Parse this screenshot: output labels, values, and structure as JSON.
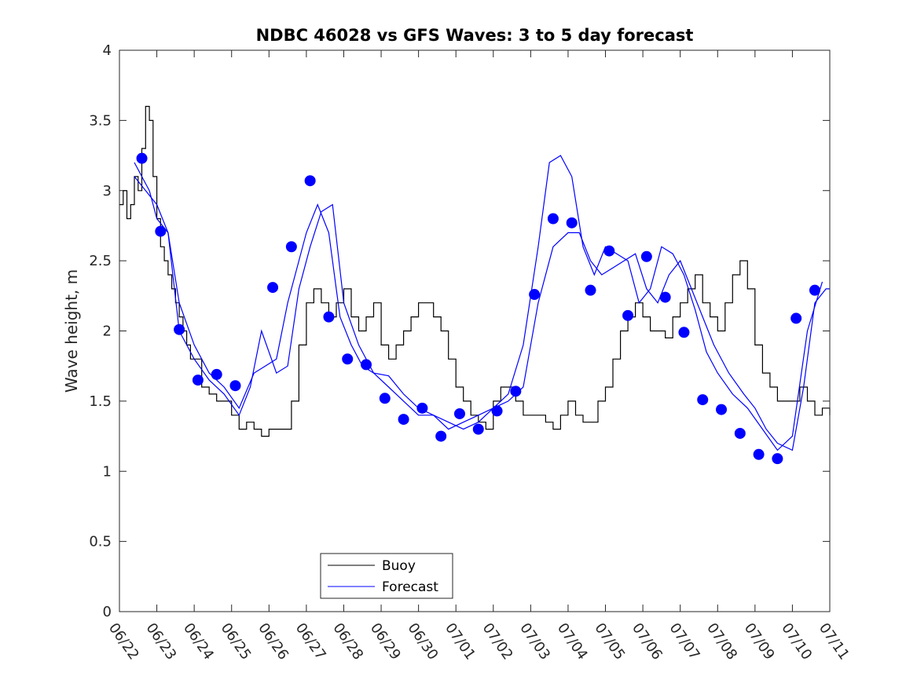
{
  "chart_data": {
    "type": "line",
    "title": "NDBC 46028 vs GFS Waves: 3 to 5 day forecast",
    "xlabel": "",
    "ylabel": "Wave height, m",
    "xlim": [
      "06/22",
      "07/11"
    ],
    "ylim": [
      0,
      4
    ],
    "x_ticks": [
      "06/22",
      "06/23",
      "06/24",
      "06/25",
      "06/26",
      "06/27",
      "06/28",
      "06/29",
      "06/30",
      "07/01",
      "07/02",
      "07/03",
      "07/04",
      "07/05",
      "07/06",
      "07/07",
      "07/08",
      "07/09",
      "07/10",
      "07/11"
    ],
    "y_ticks": [
      "0",
      "0.5",
      "1",
      "1.5",
      "2",
      "2.5",
      "3",
      "3.5",
      "4"
    ],
    "legend": {
      "position": "bottom-center",
      "entries": [
        "Buoy",
        "Forecast"
      ]
    },
    "colors": {
      "buoy": "#000000",
      "forecast": "#0000ff",
      "markers": "#0000ff"
    },
    "series": [
      {
        "name": "Buoy",
        "x_days": [
          0.0,
          0.1,
          0.2,
          0.3,
          0.4,
          0.5,
          0.6,
          0.7,
          0.8,
          0.9,
          1.0,
          1.1,
          1.2,
          1.3,
          1.4,
          1.5,
          1.6,
          1.7,
          1.8,
          1.9,
          2.0,
          2.2,
          2.4,
          2.6,
          2.8,
          3.0,
          3.2,
          3.4,
          3.6,
          3.8,
          4.0,
          4.2,
          4.4,
          4.6,
          4.8,
          5.0,
          5.2,
          5.4,
          5.6,
          5.8,
          6.0,
          6.2,
          6.4,
          6.6,
          6.8,
          7.0,
          7.2,
          7.4,
          7.6,
          7.8,
          8.0,
          8.2,
          8.4,
          8.6,
          8.8,
          9.0,
          9.2,
          9.4,
          9.6,
          9.8,
          10.0,
          10.2,
          10.4,
          10.6,
          10.8,
          11.0,
          11.2,
          11.4,
          11.6,
          11.8,
          12.0,
          12.2,
          12.4,
          12.6,
          12.8,
          13.0,
          13.2,
          13.4,
          13.6,
          13.8,
          14.0,
          14.2,
          14.4,
          14.6,
          14.8,
          15.0,
          15.2,
          15.4,
          15.6,
          15.8,
          16.0,
          16.2,
          16.4,
          16.6,
          16.8,
          17.0,
          17.2,
          17.4,
          17.6,
          17.8,
          18.0,
          18.2,
          18.4,
          18.6,
          18.8,
          19.0
        ],
        "values": [
          2.9,
          3.0,
          2.8,
          2.9,
          3.1,
          3.0,
          3.3,
          3.6,
          3.5,
          3.1,
          2.8,
          2.6,
          2.5,
          2.4,
          2.3,
          2.2,
          2.1,
          2.0,
          1.9,
          1.8,
          1.8,
          1.6,
          1.55,
          1.5,
          1.5,
          1.4,
          1.3,
          1.35,
          1.3,
          1.25,
          1.3,
          1.3,
          1.3,
          1.5,
          1.9,
          2.2,
          2.3,
          2.2,
          2.1,
          2.2,
          2.3,
          2.1,
          2.0,
          2.1,
          2.2,
          1.9,
          1.8,
          1.9,
          2.0,
          2.1,
          2.2,
          2.2,
          2.1,
          2.0,
          1.8,
          1.6,
          1.5,
          1.4,
          1.35,
          1.3,
          1.5,
          1.6,
          1.6,
          1.5,
          1.4,
          1.4,
          1.4,
          1.35,
          1.3,
          1.4,
          1.5,
          1.4,
          1.35,
          1.35,
          1.5,
          1.6,
          1.8,
          2.0,
          2.1,
          2.2,
          2.1,
          2.0,
          2.0,
          1.95,
          2.1,
          2.2,
          2.3,
          2.4,
          2.2,
          2.1,
          2.0,
          2.2,
          2.4,
          2.5,
          2.3,
          1.9,
          1.7,
          1.6,
          1.5,
          1.5,
          1.5,
          1.6,
          1.5,
          1.4,
          1.45,
          1.4
        ]
      },
      {
        "name": "Forecast",
        "x_days": [
          0.4,
          0.6,
          0.8,
          1.0,
          1.3,
          1.6,
          2.0,
          2.4,
          2.8,
          3.2,
          3.6,
          3.9,
          4.2,
          4.5,
          4.8,
          5.0,
          5.3,
          5.6,
          5.9,
          6.2,
          6.5,
          6.8,
          7.2,
          7.6,
          8.0,
          8.4,
          8.8,
          9.2,
          9.6,
          10.0,
          10.4,
          10.8,
          11.2,
          11.6,
          12.0,
          12.3,
          12.6,
          12.9,
          13.2,
          13.5,
          13.8,
          14.1,
          14.4,
          14.7,
          15.0,
          15.3,
          15.6,
          15.9,
          16.3,
          16.7,
          17.0,
          17.3,
          17.6,
          18.0,
          18.3,
          18.6,
          18.9,
          19.0
        ],
        "values": [
          3.2,
          3.1,
          3.0,
          2.8,
          2.7,
          2.2,
          1.9,
          1.7,
          1.6,
          1.45,
          1.7,
          1.75,
          1.8,
          2.2,
          2.5,
          2.7,
          2.9,
          2.7,
          2.1,
          1.9,
          1.75,
          1.7,
          1.6,
          1.5,
          1.4,
          1.4,
          1.3,
          1.35,
          1.4,
          1.45,
          1.5,
          1.6,
          2.2,
          2.6,
          2.7,
          2.7,
          2.5,
          2.4,
          2.45,
          2.5,
          2.55,
          2.3,
          2.2,
          2.4,
          2.5,
          2.3,
          2.1,
          1.9,
          1.7,
          1.55,
          1.45,
          1.3,
          1.2,
          1.15,
          1.6,
          2.2,
          2.3,
          2.3
        ]
      },
      {
        "name": "Forecast",
        "x_days": [
          0.4,
          0.7,
          1.0,
          1.3,
          1.6,
          2.0,
          2.4,
          2.8,
          3.2,
          3.5,
          3.8,
          4.2,
          4.5,
          4.8,
          5.1,
          5.4,
          5.7,
          6.0,
          6.4,
          6.8,
          7.2,
          7.6,
          8.0,
          8.4,
          8.8,
          9.2,
          9.6,
          10.0,
          10.4,
          10.8,
          11.2,
          11.5,
          11.8,
          12.1,
          12.4,
          12.7,
          13.0,
          13.3,
          13.6,
          13.9,
          14.2,
          14.5,
          14.8,
          15.1,
          15.4,
          15.7,
          16.0,
          16.4,
          16.8,
          17.2,
          17.6,
          18.0,
          18.4,
          18.8
        ],
        "values": [
          3.1,
          3.0,
          2.9,
          2.7,
          2.0,
          1.8,
          1.65,
          1.55,
          1.4,
          1.6,
          2.0,
          1.7,
          1.75,
          2.3,
          2.6,
          2.85,
          2.9,
          2.2,
          1.9,
          1.7,
          1.68,
          1.55,
          1.45,
          1.4,
          1.35,
          1.3,
          1.35,
          1.45,
          1.55,
          1.9,
          2.6,
          3.2,
          3.25,
          3.1,
          2.6,
          2.4,
          2.6,
          2.55,
          2.5,
          2.2,
          2.3,
          2.6,
          2.55,
          2.4,
          2.15,
          1.85,
          1.7,
          1.55,
          1.45,
          1.3,
          1.15,
          1.25,
          2.0,
          2.35
        ]
      }
    ],
    "markers": {
      "x_days": [
        0.6,
        1.1,
        1.6,
        2.1,
        2.6,
        3.1,
        4.1,
        4.6,
        5.1,
        5.6,
        6.1,
        6.6,
        7.1,
        7.6,
        8.1,
        8.6,
        9.1,
        9.6,
        10.1,
        10.6,
        11.1,
        11.6,
        12.1,
        12.6,
        13.1,
        13.6,
        14.1,
        14.6,
        15.1,
        15.6,
        16.1,
        16.6,
        17.1,
        17.6,
        18.1,
        18.6
      ],
      "values": [
        3.23,
        2.71,
        2.01,
        1.65,
        1.69,
        1.61,
        2.31,
        2.6,
        3.07,
        2.1,
        1.8,
        1.76,
        1.52,
        1.37,
        1.45,
        1.25,
        1.41,
        1.3,
        1.43,
        1.57,
        2.26,
        2.8,
        2.77,
        2.29,
        2.57,
        2.11,
        2.53,
        2.24,
        1.99,
        1.51,
        1.44,
        1.27,
        1.12,
        1.09,
        2.09,
        2.29
      ]
    }
  }
}
